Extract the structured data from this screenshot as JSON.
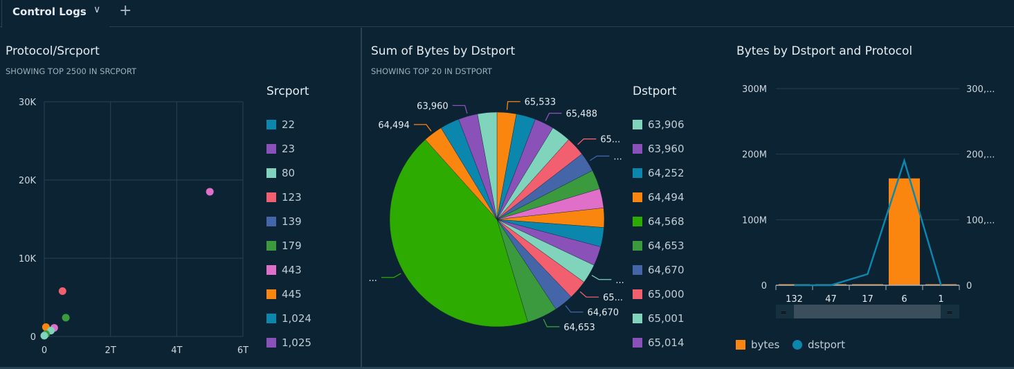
{
  "tab": {
    "label": "Control Logs",
    "chevron": "chevron-down-icon",
    "add": "+"
  },
  "colors": {
    "blue": "#0b86ad",
    "purple": "#8a52b8",
    "mint": "#80d4bb",
    "red": "#f25f6e",
    "navy": "#4466a8",
    "green": "#3c9a3e",
    "pink": "#e06fca",
    "orange": "#fa8610",
    "lime": "#2eab00"
  },
  "scatter": {
    "title": "Protocol/Srcport",
    "subtitle": "SHOWING TOP 2500 IN SRCPORT",
    "legend_title": "Srcport",
    "legend": [
      {
        "label": "22",
        "color": "blue"
      },
      {
        "label": "23",
        "color": "purple"
      },
      {
        "label": "80",
        "color": "mint"
      },
      {
        "label": "123",
        "color": "red"
      },
      {
        "label": "139",
        "color": "navy"
      },
      {
        "label": "179",
        "color": "green"
      },
      {
        "label": "443",
        "color": "pink"
      },
      {
        "label": "445",
        "color": "orange"
      },
      {
        "label": "1,024",
        "color": "blue"
      },
      {
        "label": "1,025",
        "color": "purple"
      }
    ]
  },
  "pie": {
    "title": "Sum of Bytes by Dstport",
    "subtitle": "SHOWING TOP 20 IN DSTPORT",
    "legend_title": "Dstport",
    "legend": [
      {
        "label": "63,906",
        "color": "mint"
      },
      {
        "label": "63,960",
        "color": "purple"
      },
      {
        "label": "64,252",
        "color": "blue"
      },
      {
        "label": "64,494",
        "color": "orange"
      },
      {
        "label": "64,568",
        "color": "lime"
      },
      {
        "label": "64,653",
        "color": "green"
      },
      {
        "label": "64,670",
        "color": "navy"
      },
      {
        "label": "65,000",
        "color": "red"
      },
      {
        "label": "65,001",
        "color": "mint"
      },
      {
        "label": "65,014",
        "color": "purple"
      }
    ]
  },
  "combo": {
    "title": "Bytes by Dstport and Protocol",
    "left_ticks": [
      "0",
      "100M",
      "200M",
      "300M"
    ],
    "right_ticks": [
      "0",
      "100,...",
      "200,...",
      "300,..."
    ],
    "legend": [
      {
        "label": "bytes",
        "color": "orange"
      },
      {
        "label": "dstport",
        "color": "blue"
      }
    ]
  },
  "chart_data": [
    {
      "type": "scatter",
      "title": "Protocol/Srcport",
      "xlabel": "",
      "ylabel": "",
      "xlim": [
        0,
        6000000000000.0
      ],
      "ylim": [
        0,
        30000
      ],
      "xticks": [
        "0",
        "2T",
        "4T",
        "6T"
      ],
      "yticks": [
        "0",
        "10K",
        "20K",
        "30K"
      ],
      "points": [
        {
          "srcport": "443",
          "x": 5000000000000.0,
          "y": 18500
        },
        {
          "srcport": "123",
          "x": 550000000000.0,
          "y": 5800
        },
        {
          "srcport": "179",
          "x": 650000000000.0,
          "y": 2400
        },
        {
          "srcport": "445",
          "x": 50000000000.0,
          "y": 1200
        },
        {
          "srcport": "443",
          "x": 300000000000.0,
          "y": 1100
        },
        {
          "srcport": "80",
          "x": 200000000000.0,
          "y": 750
        },
        {
          "srcport": "179",
          "x": 50000000000.0,
          "y": 300
        },
        {
          "srcport": "80",
          "x": 0.0,
          "y": 100
        }
      ]
    },
    {
      "type": "pie",
      "title": "Sum of Bytes by Dstport",
      "slices": [
        {
          "label": "65,533",
          "color": "orange",
          "value": 2.91
        },
        {
          "label": "",
          "color": "blue",
          "value": 2.91
        },
        {
          "label": "65,488",
          "color": "purple",
          "value": 2.91
        },
        {
          "label": "",
          "color": "mint",
          "value": 2.91
        },
        {
          "label": "65...",
          "color": "red",
          "value": 2.91
        },
        {
          "label": "...",
          "color": "navy",
          "value": 2.91
        },
        {
          "label": "",
          "color": "green",
          "value": 2.91
        },
        {
          "label": "",
          "color": "pink",
          "value": 2.91
        },
        {
          "label": "",
          "color": "orange",
          "value": 2.91
        },
        {
          "label": "",
          "color": "blue",
          "value": 2.91
        },
        {
          "label": "",
          "color": "purple",
          "value": 2.91
        },
        {
          "label": "...",
          "color": "mint",
          "value": 2.91
        },
        {
          "label": "65...",
          "color": "red",
          "value": 2.91
        },
        {
          "label": "64,670",
          "color": "navy",
          "value": 2.91
        },
        {
          "label": "64,653",
          "color": "green",
          "value": 4.6
        },
        {
          "label": "...",
          "color": "lime",
          "value": 43.0
        },
        {
          "label": "64,494",
          "color": "orange",
          "value": 2.91
        },
        {
          "label": "",
          "color": "blue",
          "value": 2.91
        },
        {
          "label": "63,960",
          "color": "purple",
          "value": 2.91
        },
        {
          "label": "",
          "color": "mint",
          "value": 2.91
        }
      ]
    },
    {
      "type": "bar+line",
      "title": "Bytes by Dstport and Protocol",
      "categories": [
        "132",
        "47",
        "17",
        "6",
        "1"
      ],
      "series": [
        {
          "name": "bytes",
          "type": "bar",
          "values": [
            1000000,
            1000000,
            1000000,
            163000000,
            1000000
          ]
        },
        {
          "name": "dstport",
          "type": "line",
          "values": [
            0,
            0,
            17000,
            190000,
            0
          ]
        }
      ],
      "ylim": [
        0,
        300000000
      ],
      "y2lim": [
        0,
        300000
      ]
    }
  ]
}
